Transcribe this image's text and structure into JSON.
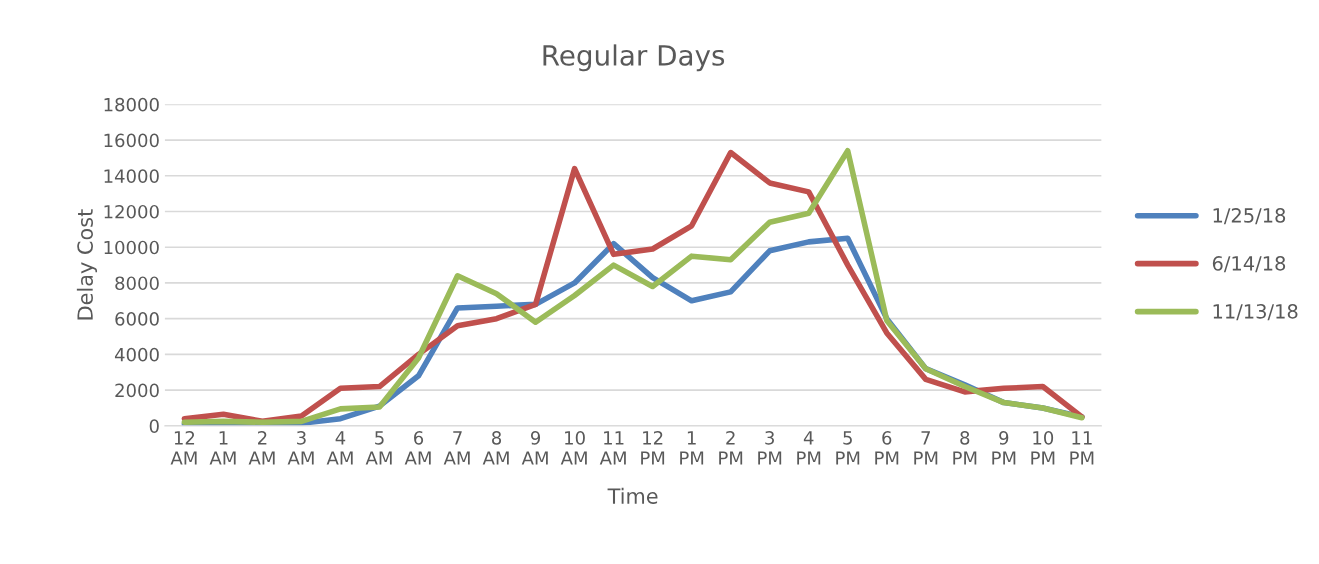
{
  "chart_data": {
    "type": "line",
    "title": "Regular Days",
    "xlabel": "Time",
    "ylabel": "Delay Cost",
    "categories": [
      "12\nAM",
      "1\nAM",
      "2\nAM",
      "3\nAM",
      "4\nAM",
      "5\nAM",
      "6\nAM",
      "7\nAM",
      "8\nAM",
      "9\nAM",
      "10\nAM",
      "11\nAM",
      "12\nPM",
      "1\nPM",
      "2\nPM",
      "3\nPM",
      "4\nPM",
      "5\nPM",
      "6\nPM",
      "7\nPM",
      "8\nPM",
      "9\nPM",
      "10\nPM",
      "11\nPM"
    ],
    "series": [
      {
        "name": "1/25/18",
        "color": "#4f81bd",
        "values": [
          100,
          50,
          50,
          150,
          400,
          1100,
          2800,
          6600,
          6700,
          6800,
          8000,
          10200,
          8300,
          7000,
          7500,
          9800,
          10300,
          10500,
          6000,
          3200,
          2300,
          1300,
          1000,
          500
        ]
      },
      {
        "name": "6/14/18",
        "color": "#c0504d",
        "values": [
          400,
          650,
          250,
          550,
          2100,
          2200,
          4000,
          5600,
          6000,
          6800,
          14400,
          9600,
          9900,
          11200,
          15300,
          13600,
          13100,
          9000,
          5200,
          2600,
          1900,
          2100,
          2200,
          500
        ]
      },
      {
        "name": "11/13/18",
        "color": "#9bbb59",
        "values": [
          200,
          250,
          200,
          250,
          950,
          1050,
          3800,
          8400,
          7400,
          5800,
          7300,
          9000,
          7800,
          9500,
          9300,
          11400,
          11900,
          15400,
          5900,
          3200,
          2200,
          1300,
          1000,
          450
        ]
      }
    ],
    "ylim": [
      0,
      18000
    ],
    "yticks": [
      0,
      2000,
      4000,
      6000,
      8000,
      10000,
      12000,
      14000,
      16000,
      18000
    ],
    "grid": "y",
    "legend": "right",
    "marker": "none",
    "line_style": "solid"
  }
}
